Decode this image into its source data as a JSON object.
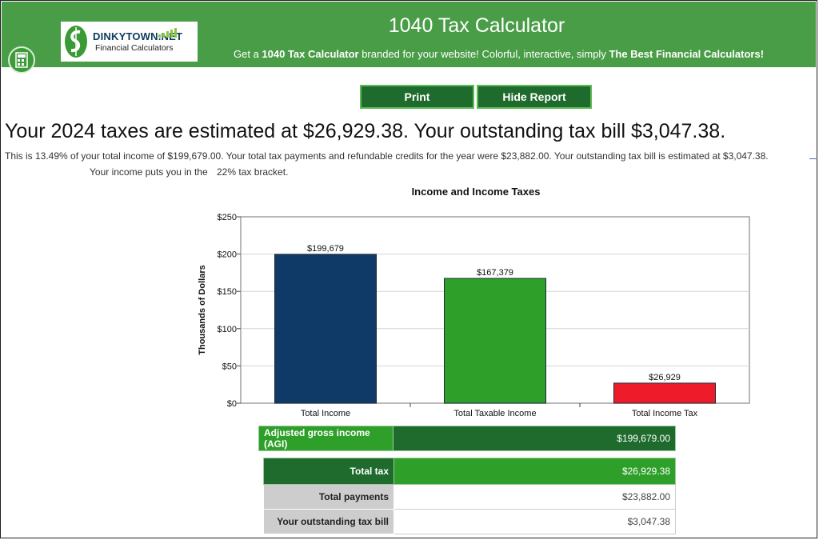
{
  "header": {
    "title": "1040 Tax Calculator",
    "tagline_prefix": "Get a ",
    "tagline_bold1": "1040 Tax Calculator",
    "tagline_middle": " branded for your website! Colorful, interactive, simply ",
    "tagline_bold2": "The Best Financial Calculators!",
    "logo_name": "DINKYTOWN.NET",
    "logo_subtitle": "Financial Calculators"
  },
  "buttons": {
    "print": "Print",
    "hide_report": "Hide Report"
  },
  "summary_text": {
    "headline": "Your 2024 taxes are estimated at $26,929.38. Your outstanding tax bill $3,047.38.",
    "paragraph": "This is 13.49% of your total income of $199,679.00. Your total tax payments and refundable credits for the year were $23,882.00. Your outstanding tax bill is estimated at $3,047.38.",
    "bracket_prefix": "Your income puts you in the",
    "bracket_value": "22%",
    "bracket_suffix": "tax bracket."
  },
  "chart_data": {
    "type": "bar",
    "title": "Income and Income Taxes",
    "ylabel": "Thousands of Dollars",
    "xlabel": "",
    "categories": [
      "Total Income",
      "Total Taxable Income",
      "Total Income Tax"
    ],
    "values": [
      199.679,
      167.379,
      26.929
    ],
    "data_labels": [
      "$199,679",
      "$167,379",
      "$26,929"
    ],
    "bar_colors": [
      "#0f3a68",
      "#2ea02a",
      "#ee1c2a"
    ],
    "ylim": [
      0,
      250
    ],
    "yticks": [
      0,
      50,
      100,
      150,
      200,
      250
    ],
    "ytick_labels": [
      "$0",
      "$50",
      "$100",
      "$150",
      "$200",
      "$250"
    ],
    "grid": true
  },
  "agi_table": {
    "label": "Adjusted gross income (AGI)",
    "value": "$199,679.00"
  },
  "tax_table": {
    "rows": [
      {
        "label": "Total tax",
        "value": "$26,929.38"
      },
      {
        "label": "Total payments",
        "value": "$23,882.00"
      },
      {
        "label": "Your outstanding tax bill",
        "value": "$3,047.38"
      }
    ]
  },
  "colors": {
    "header_green": "#4a9d47",
    "dark_green": "#1e6b2d",
    "bright_green": "#2ea02a",
    "row_gray": "#cdcdcd"
  }
}
